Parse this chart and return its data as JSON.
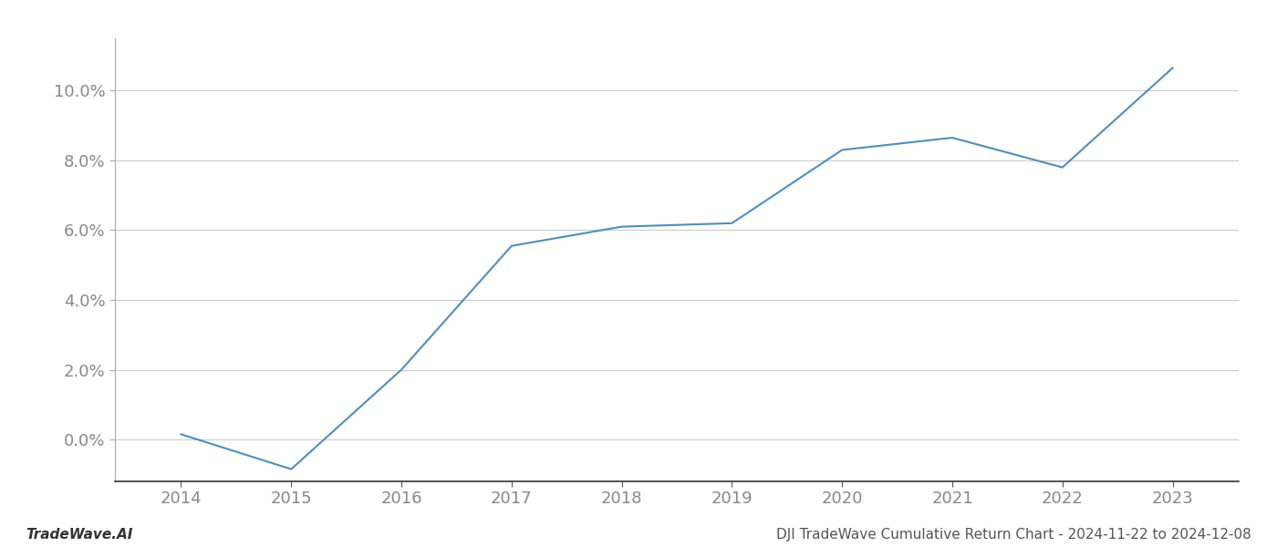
{
  "years": [
    2014,
    2015,
    2016,
    2017,
    2018,
    2019,
    2020,
    2021,
    2022,
    2023
  ],
  "values": [
    0.15,
    -0.85,
    2.0,
    5.55,
    6.1,
    6.2,
    8.3,
    8.65,
    7.8,
    10.65
  ],
  "line_color": "#4a90c4",
  "line_width": 1.5,
  "background_color": "#ffffff",
  "grid_color": "#cccccc",
  "ylim": [
    -1.2,
    11.5
  ],
  "yticks": [
    0.0,
    2.0,
    4.0,
    6.0,
    8.0,
    10.0
  ],
  "xticks": [
    2014,
    2015,
    2016,
    2017,
    2018,
    2019,
    2020,
    2021,
    2022,
    2023
  ],
  "xlim_left": 2013.4,
  "xlim_right": 2023.6,
  "xlabel": "",
  "ylabel": "",
  "footer_left": "TradeWave.AI",
  "footer_right": "DJI TradeWave Cumulative Return Chart - 2024-11-22 to 2024-12-08",
  "tick_fontsize": 13,
  "footer_fontsize": 11
}
